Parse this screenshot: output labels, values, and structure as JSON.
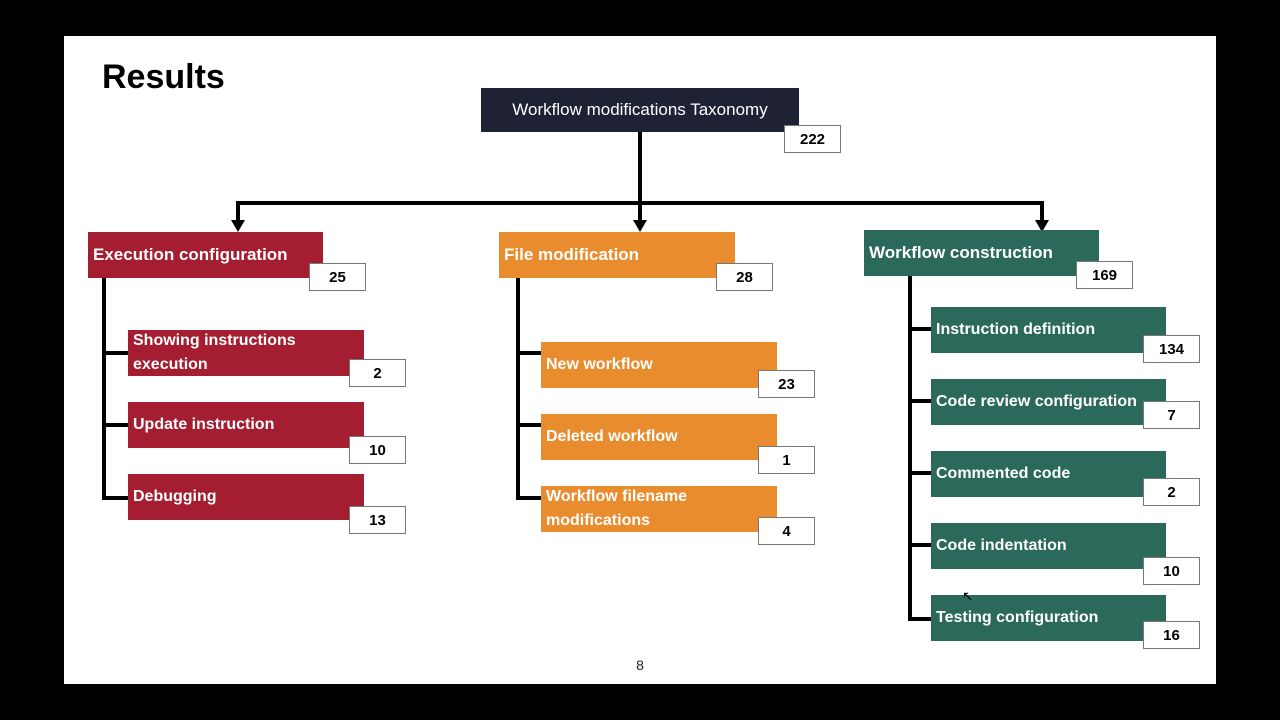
{
  "slide": {
    "title": "Results",
    "page_number": "8"
  },
  "colors": {
    "root": "#1f2235",
    "execution": "#a51d30",
    "file": "#e98c2e",
    "construction": "#2b6a5a"
  },
  "taxonomy": {
    "label": "Workflow modifications Taxonomy",
    "count": "222",
    "categories": [
      {
        "label": "Execution configuration",
        "count": "25",
        "children": [
          {
            "label": "Showing instructions execution",
            "count": "2"
          },
          {
            "label": "Update instruction",
            "count": "10"
          },
          {
            "label": "Debugging",
            "count": "13"
          }
        ]
      },
      {
        "label": "File modification",
        "count": "28",
        "children": [
          {
            "label": "New workflow",
            "count": "23"
          },
          {
            "label": "Deleted workflow",
            "count": "1"
          },
          {
            "label": "Workflow filename modifications",
            "count": "4"
          }
        ]
      },
      {
        "label": "Workflow construction",
        "count": "169",
        "children": [
          {
            "label": "Instruction definition",
            "count": "134"
          },
          {
            "label": "Code review configuration",
            "count": "7"
          },
          {
            "label": "Commented code",
            "count": "2"
          },
          {
            "label": "Code indentation",
            "count": "10"
          },
          {
            "label": "Testing configuration",
            "count": "16"
          }
        ]
      }
    ]
  }
}
